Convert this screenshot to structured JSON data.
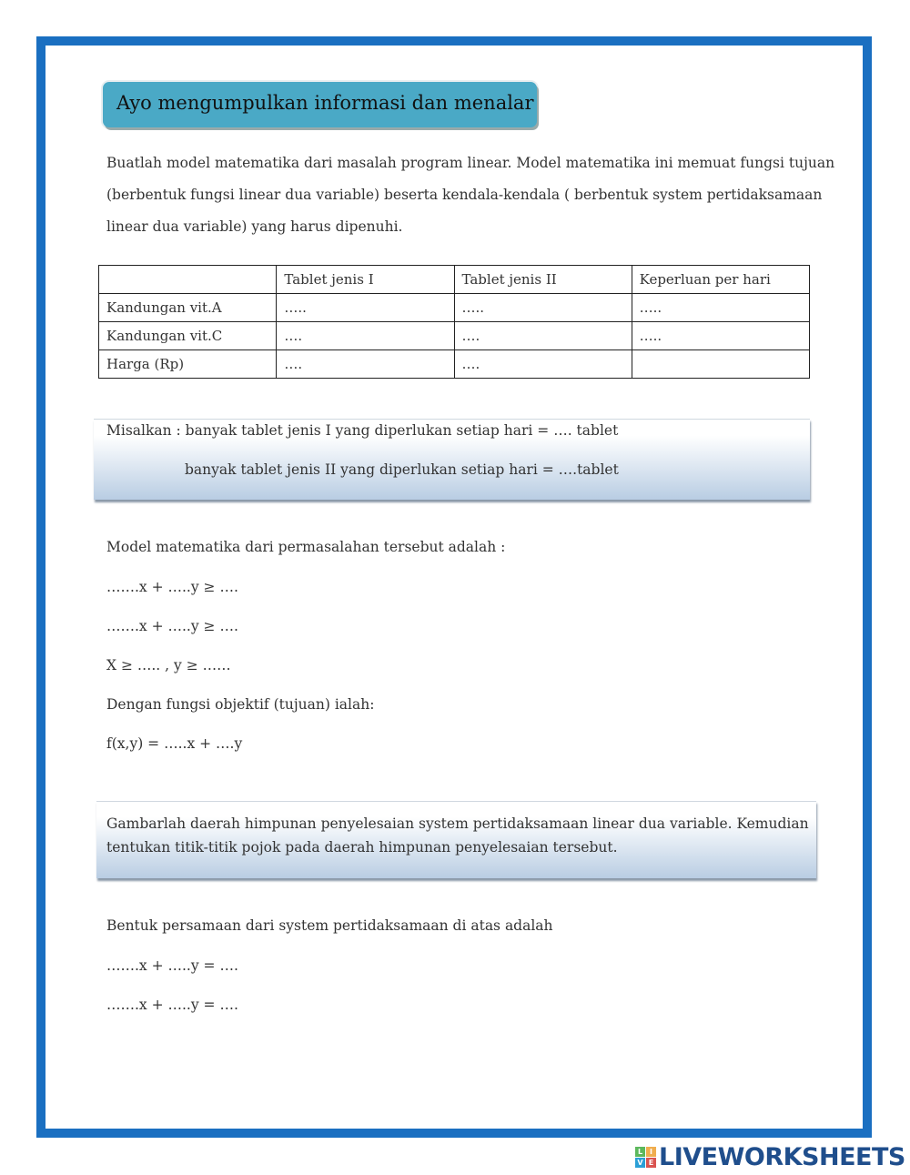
{
  "heading": "Ayo mengumpulkan informasi dan menalar",
  "intro": [
    "Buatlah model matematika dari masalah program linear. Model matematika ini memuat fungsi tujuan",
    "(berbentuk fungsi linear dua variable) beserta kendala-kendala ( berbentuk system pertidaksamaan",
    "linear dua variable) yang harus dipenuhi."
  ],
  "table": {
    "headers": [
      "",
      "Tablet jenis I",
      "Tablet jenis II",
      "Keperluan per hari"
    ],
    "rows": [
      [
        "Kandungan vit.A",
        "…..",
        "…..",
        "….."
      ],
      [
        "Kandungan vit.C",
        "….",
        "….",
        "….."
      ],
      [
        "Harga (Rp)",
        "….",
        "….",
        ""
      ]
    ]
  },
  "misalkan": [
    "Misalkan : banyak tablet jenis I yang diperlukan setiap hari = …. tablet",
    "banyak tablet jenis II yang diperlukan setiap hari = ….tablet"
  ],
  "model": {
    "title": "Model matematika dari permasalahan tersebut adalah :",
    "lines": [
      "…….x + …..y ≥ ….",
      "…….x + …..y ≥ ….",
      "X ≥ ….. , y ≥ ……"
    ],
    "objective_label": "Dengan fungsi objektif (tujuan) ialah:",
    "objective": "f(x,y) = …..x + ….y"
  },
  "instruction": [
    "Gambarlah daerah himpunan penyelesaian system pertidaksamaan linear dua variable. Kemudian",
    "tentukan titik-titik pojok pada daerah himpunan penyelesaian tersebut."
  ],
  "bentuk": {
    "title": "Bentuk persamaan dari system pertidaksamaan di atas adalah",
    "lines": [
      "…….x + …..y = ….",
      "…….x + …..y = …."
    ]
  },
  "logo": {
    "text": "LIVEWORKSHEETS",
    "letters": [
      "L",
      "I",
      "V",
      "E"
    ],
    "colors": [
      "#5cb85c",
      "#f0ad4e",
      "#2a9fd6",
      "#d9534f"
    ]
  },
  "colors": {
    "frame": "#1a6fc1",
    "heading_bg": "#4aa9c6"
  }
}
